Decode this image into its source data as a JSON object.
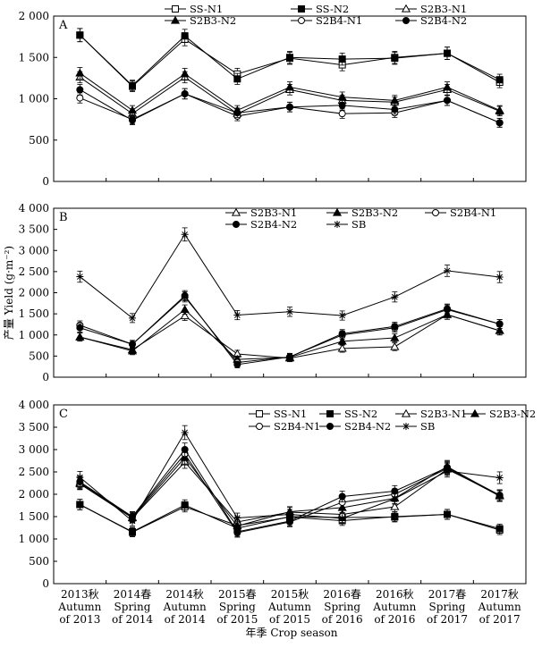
{
  "chart_data": [
    {
      "type": "line",
      "panel_label": "A",
      "ylim": [
        0,
        2000
      ],
      "yticks": [
        "0",
        "500",
        "1 000",
        "1 500",
        "2 000"
      ],
      "legend_placement": "top-right",
      "series": [
        {
          "name": "SS-N1",
          "marker": "open-square",
          "values": [
            1770,
            1150,
            1720,
            1300,
            1490,
            1410,
            1500,
            1550,
            1200
          ]
        },
        {
          "name": "SS-N2",
          "marker": "filled-square",
          "values": [
            1770,
            1160,
            1760,
            1240,
            1500,
            1480,
            1490,
            1550,
            1230
          ]
        },
        {
          "name": "S2B3-N1",
          "marker": "open-triangle",
          "values": [
            1260,
            820,
            1260,
            820,
            1110,
            980,
            960,
            1110,
            850
          ]
        },
        {
          "name": "S2B3-N2",
          "marker": "filled-triangle",
          "values": [
            1310,
            860,
            1300,
            860,
            1140,
            1020,
            980,
            1140,
            860
          ]
        },
        {
          "name": "S2B4-N1",
          "marker": "open-circle",
          "values": [
            1010,
            750,
            1060,
            790,
            900,
            820,
            830,
            980,
            710
          ]
        },
        {
          "name": "S2B4-N2",
          "marker": "filled-circle",
          "values": [
            1110,
            740,
            1060,
            830,
            900,
            920,
            870,
            980,
            710
          ]
        }
      ]
    },
    {
      "type": "line",
      "panel_label": "B",
      "ylim": [
        0,
        4000
      ],
      "yticks": [
        "0",
        "500",
        "1 000",
        "1 500",
        "2 000",
        "2 500",
        "3 000",
        "3 500",
        "4 000"
      ],
      "legend_placement": "top-right",
      "series": [
        {
          "name": "S2B3-N1",
          "marker": "open-triangle",
          "values": [
            950,
            650,
            1450,
            550,
            450,
            680,
            720,
            1480,
            1100
          ]
        },
        {
          "name": "S2B3-N2",
          "marker": "filled-triangle",
          "values": [
            950,
            620,
            1600,
            420,
            470,
            850,
            930,
            1480,
            1100
          ]
        },
        {
          "name": "S2B4-N1",
          "marker": "open-circle",
          "values": [
            1230,
            780,
            1900,
            350,
            480,
            1000,
            1170,
            1600,
            1260
          ]
        },
        {
          "name": "S2B4-N2",
          "marker": "filled-circle",
          "values": [
            1170,
            780,
            1930,
            300,
            480,
            1030,
            1200,
            1620,
            1260
          ]
        },
        {
          "name": "SB",
          "marker": "star",
          "values": [
            2380,
            1400,
            3380,
            1470,
            1550,
            1460,
            1900,
            2520,
            2370
          ]
        }
      ]
    },
    {
      "type": "line",
      "panel_label": "C",
      "ylim": [
        0,
        4000
      ],
      "yticks": [
        "0",
        "500",
        "1 000",
        "1 500",
        "2 000",
        "2 500",
        "3 000",
        "3 500",
        "4 000"
      ],
      "legend_placement": "top-right",
      "series": [
        {
          "name": "SS-N1",
          "marker": "open-square",
          "values": [
            1770,
            1150,
            1720,
            1300,
            1490,
            1410,
            1500,
            1550,
            1200
          ]
        },
        {
          "name": "SS-N2",
          "marker": "filled-square",
          "values": [
            1770,
            1160,
            1760,
            1240,
            1500,
            1480,
            1490,
            1550,
            1230
          ]
        },
        {
          "name": "S2B3-N1",
          "marker": "open-triangle",
          "values": [
            2230,
            1470,
            2720,
            1380,
            1600,
            1550,
            1720,
            2560,
            1980
          ]
        },
        {
          "name": "S2B3-N2",
          "marker": "filled-triangle",
          "values": [
            2260,
            1480,
            2820,
            1290,
            1610,
            1700,
            1910,
            2620,
            1960
          ]
        },
        {
          "name": "S2B4-N1",
          "marker": "open-circle",
          "values": [
            2240,
            1500,
            2900,
            1140,
            1380,
            1820,
            2000,
            2580,
            1960
          ]
        },
        {
          "name": "S2B4-N2",
          "marker": "filled-circle",
          "values": [
            2280,
            1500,
            3000,
            1160,
            1400,
            1950,
            2070,
            2600,
            1980
          ]
        },
        {
          "name": "SB",
          "marker": "star",
          "values": [
            2380,
            1400,
            3380,
            1470,
            1550,
            1460,
            1900,
            2520,
            2370
          ]
        }
      ]
    }
  ],
  "y_axis_label": "产量 Yield (g·m⁻²)",
  "x_axis_label": "年季 Crop season",
  "x_categories": [
    {
      "cn": "2013秋",
      "en1": "Autumn",
      "en2": "of 2013"
    },
    {
      "cn": "2014春",
      "en1": "Spring",
      "en2": "of 2014"
    },
    {
      "cn": "2014秋",
      "en1": "Autumn",
      "en2": "of 2014"
    },
    {
      "cn": "2015春",
      "en1": "Spring",
      "en2": "of 2015"
    },
    {
      "cn": "2015秋",
      "en1": "Autumn",
      "en2": "of 2015"
    },
    {
      "cn": "2016春",
      "en1": "Spring",
      "en2": "of 2016"
    },
    {
      "cn": "2016秋",
      "en1": "Autumn",
      "en2": "of 2016"
    },
    {
      "cn": "2017春",
      "en1": "Spring",
      "en2": "of 2017"
    },
    {
      "cn": "2017秋",
      "en1": "Autumn",
      "en2": "of 2017"
    }
  ],
  "colors": {
    "line": "#000000",
    "background": "#ffffff"
  }
}
